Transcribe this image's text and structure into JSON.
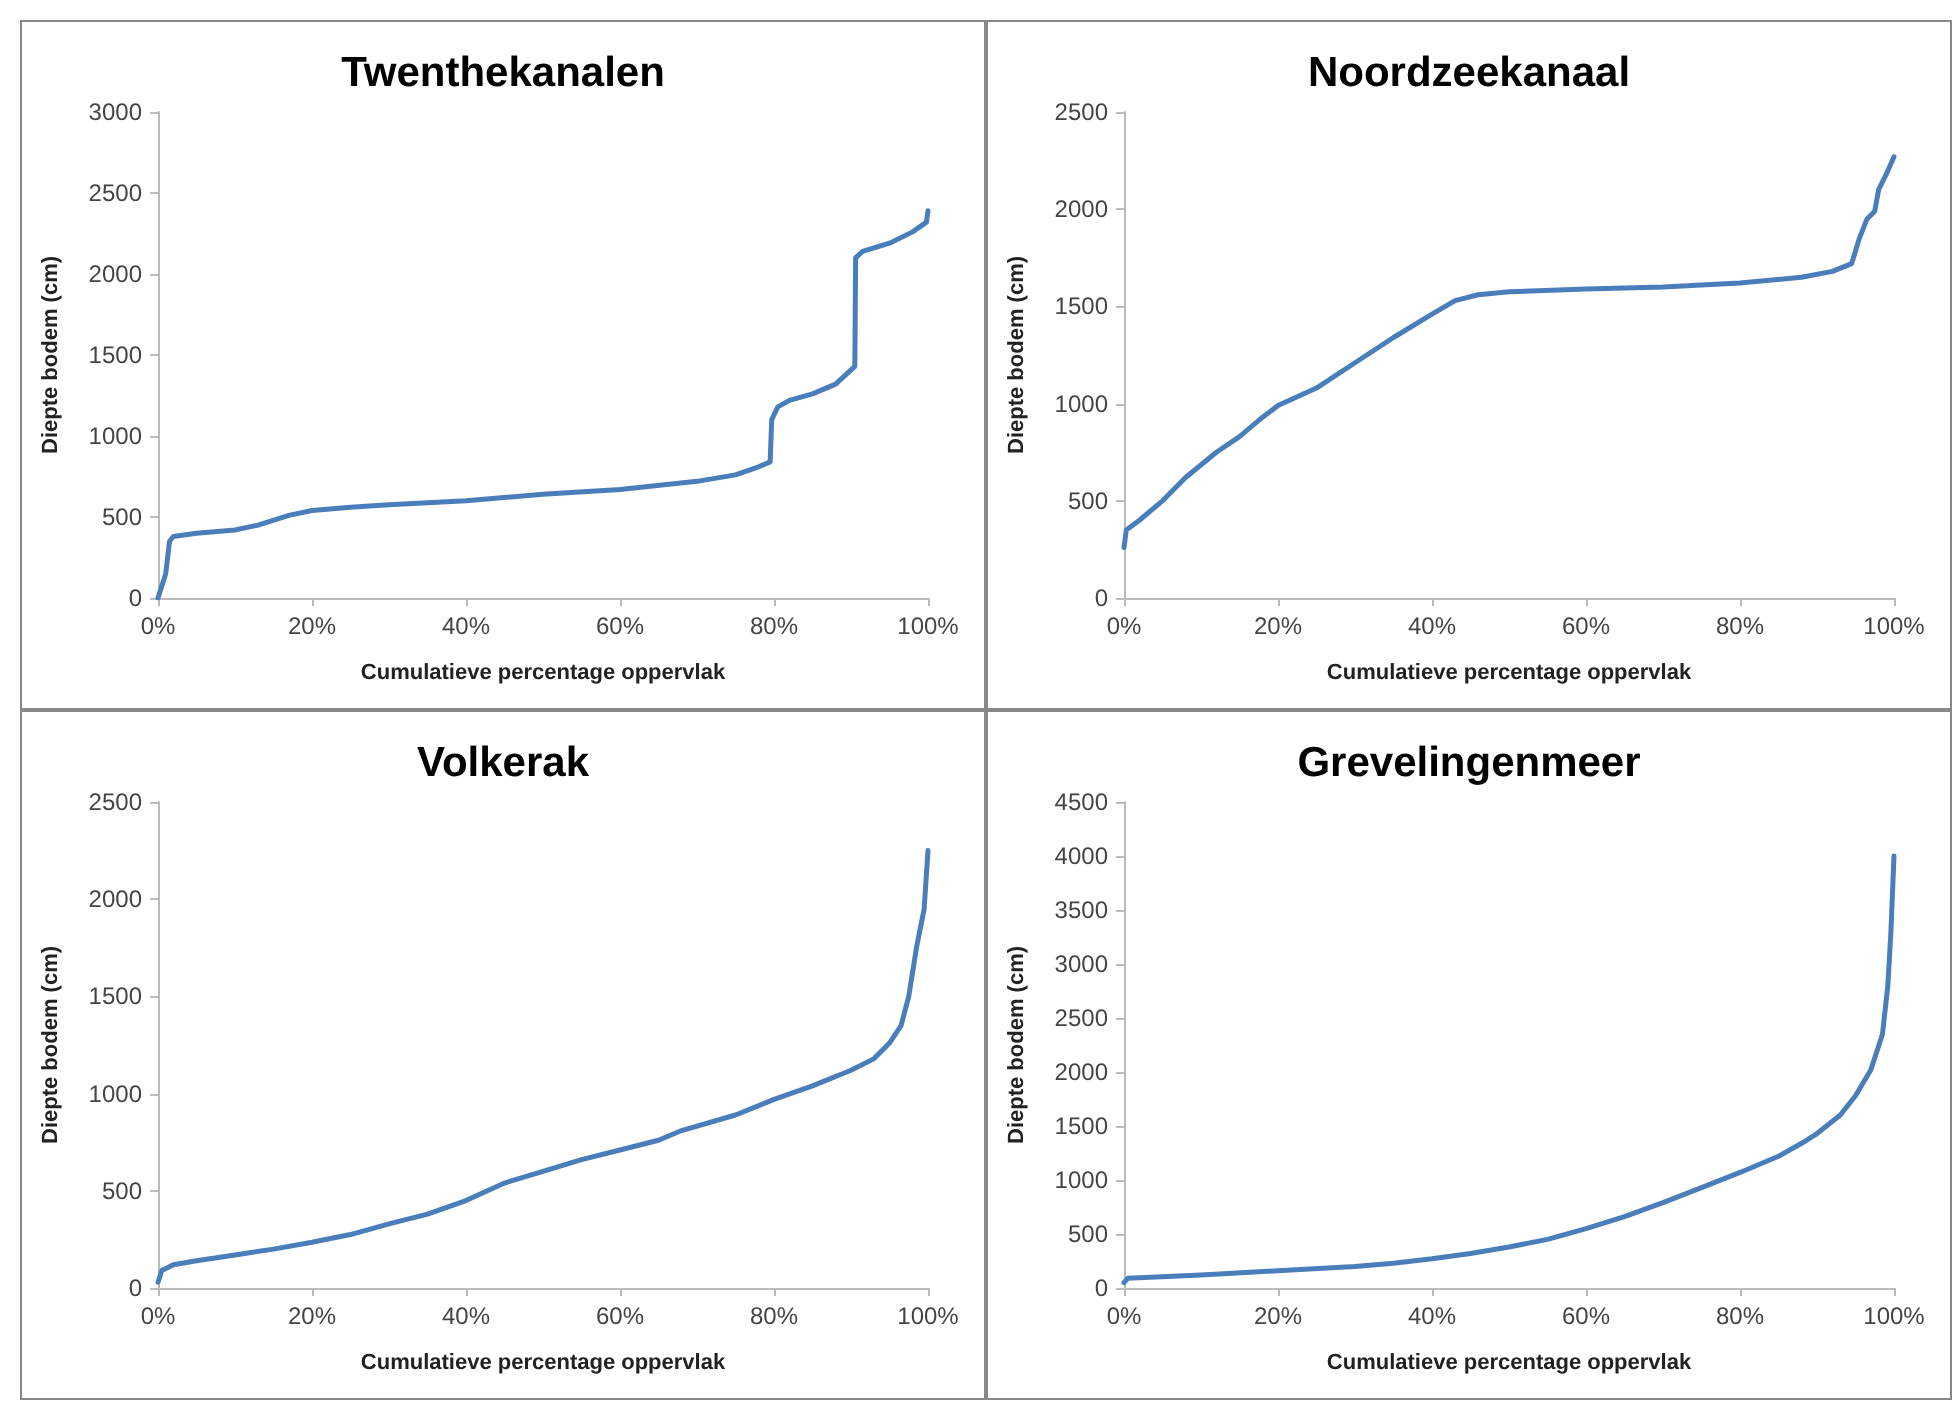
{
  "chart_data": [
    {
      "type": "line",
      "title": "Twenthekanalen",
      "xlabel": "Cumulatieve percentage oppervlak",
      "ylabel": "Diepte bodem (cm)",
      "marker": "none",
      "grid": false,
      "xlim": [
        0,
        100
      ],
      "xticks": [
        {
          "value": 0,
          "label": "0%"
        },
        {
          "value": 20,
          "label": "20%"
        },
        {
          "value": 40,
          "label": "40%"
        },
        {
          "value": 60,
          "label": "60%"
        },
        {
          "value": 80,
          "label": "80%"
        },
        {
          "value": 100,
          "label": "100%"
        }
      ],
      "ylim": [
        0,
        3000
      ],
      "yticks": [
        0,
        500,
        1000,
        1500,
        2000,
        2500,
        3000
      ],
      "series": [
        {
          "color": "#4a7ebb",
          "x": [
            0,
            1,
            1.5,
            2,
            5,
            10,
            13,
            17,
            20,
            25,
            30,
            40,
            50,
            60,
            70,
            75,
            78,
            79.5,
            79.7,
            80.5,
            82,
            85,
            88,
            90.5,
            90.6,
            91.5,
            95,
            98,
            99.8,
            100
          ],
          "values": [
            0,
            150,
            350,
            380,
            400,
            420,
            450,
            510,
            540,
            560,
            575,
            600,
            640,
            670,
            720,
            760,
            810,
            840,
            1100,
            1180,
            1220,
            1260,
            1320,
            1430,
            2100,
            2140,
            2190,
            2260,
            2320,
            2390
          ]
        }
      ]
    },
    {
      "type": "line",
      "title": "Noordzeekanaal",
      "xlabel": "Cumulatieve percentage oppervlak",
      "ylabel": "Diepte bodem (cm)",
      "marker": "none",
      "grid": false,
      "xlim": [
        0,
        100
      ],
      "xticks": [
        {
          "value": 0,
          "label": "0%"
        },
        {
          "value": 20,
          "label": "20%"
        },
        {
          "value": 40,
          "label": "40%"
        },
        {
          "value": 60,
          "label": "60%"
        },
        {
          "value": 80,
          "label": "80%"
        },
        {
          "value": 100,
          "label": "100%"
        }
      ],
      "ylim": [
        0,
        2500
      ],
      "yticks": [
        0,
        500,
        1000,
        1500,
        2000,
        2500
      ],
      "series": [
        {
          "color": "#4a7ebb",
          "x": [
            0,
            0.3,
            2,
            5,
            8,
            12,
            15,
            18,
            20,
            25,
            30,
            35,
            40,
            43,
            46,
            50,
            60,
            70,
            80,
            88,
            92,
            94.5,
            95.5,
            96.5,
            97.5,
            98,
            99,
            100
          ],
          "values": [
            260,
            350,
            400,
            500,
            620,
            750,
            830,
            930,
            990,
            1080,
            1210,
            1340,
            1460,
            1530,
            1560,
            1575,
            1590,
            1600,
            1620,
            1650,
            1680,
            1720,
            1850,
            1950,
            1990,
            2100,
            2180,
            2270
          ]
        }
      ]
    },
    {
      "type": "line",
      "title": "Volkerak",
      "xlabel": "Cumulatieve percentage oppervlak",
      "ylabel": "Diepte bodem (cm)",
      "marker": "none",
      "grid": false,
      "xlim": [
        0,
        100
      ],
      "xticks": [
        {
          "value": 0,
          "label": "0%"
        },
        {
          "value": 20,
          "label": "20%"
        },
        {
          "value": 40,
          "label": "40%"
        },
        {
          "value": 60,
          "label": "60%"
        },
        {
          "value": 80,
          "label": "80%"
        },
        {
          "value": 100,
          "label": "100%"
        }
      ],
      "ylim": [
        0,
        2500
      ],
      "yticks": [
        0,
        500,
        1000,
        1500,
        2000,
        2500
      ],
      "series": [
        {
          "color": "#4a7ebb",
          "x": [
            0,
            0.5,
            2,
            5,
            10,
            15,
            20,
            25,
            30,
            35,
            40,
            45,
            50,
            55,
            60,
            65,
            68,
            75,
            80,
            85,
            90,
            93,
            95,
            96.5,
            97.5,
            98.5,
            99.5,
            100
          ],
          "values": [
            30,
            90,
            120,
            140,
            170,
            200,
            235,
            275,
            330,
            380,
            450,
            540,
            600,
            660,
            710,
            760,
            810,
            890,
            970,
            1040,
            1120,
            1180,
            1260,
            1350,
            1500,
            1750,
            1950,
            2250
          ]
        }
      ]
    },
    {
      "type": "line",
      "title": "Grevelingenmeer",
      "xlabel": "Cumulatieve percentage oppervlak",
      "ylabel": "Diepte bodem (cm)",
      "marker": "none",
      "grid": false,
      "xlim": [
        0,
        100
      ],
      "xticks": [
        {
          "value": 0,
          "label": "0%"
        },
        {
          "value": 20,
          "label": "20%"
        },
        {
          "value": 40,
          "label": "40%"
        },
        {
          "value": 60,
          "label": "60%"
        },
        {
          "value": 80,
          "label": "80%"
        },
        {
          "value": 100,
          "label": "100%"
        }
      ],
      "ylim": [
        0,
        4500
      ],
      "yticks": [
        0,
        500,
        1000,
        1500,
        2000,
        2500,
        3000,
        3500,
        4000,
        4500
      ],
      "series": [
        {
          "color": "#4a7ebb",
          "x": [
            0,
            0.5,
            10,
            20,
            30,
            35,
            40,
            45,
            50,
            55,
            60,
            65,
            70,
            75,
            80,
            85,
            88,
            90,
            93,
            95,
            97,
            98.5,
            99.2,
            99.6,
            100
          ],
          "values": [
            50,
            90,
            120,
            160,
            200,
            230,
            270,
            320,
            380,
            450,
            550,
            660,
            790,
            930,
            1070,
            1220,
            1340,
            1430,
            1600,
            1780,
            2020,
            2350,
            2800,
            3300,
            4000
          ]
        }
      ]
    }
  ]
}
